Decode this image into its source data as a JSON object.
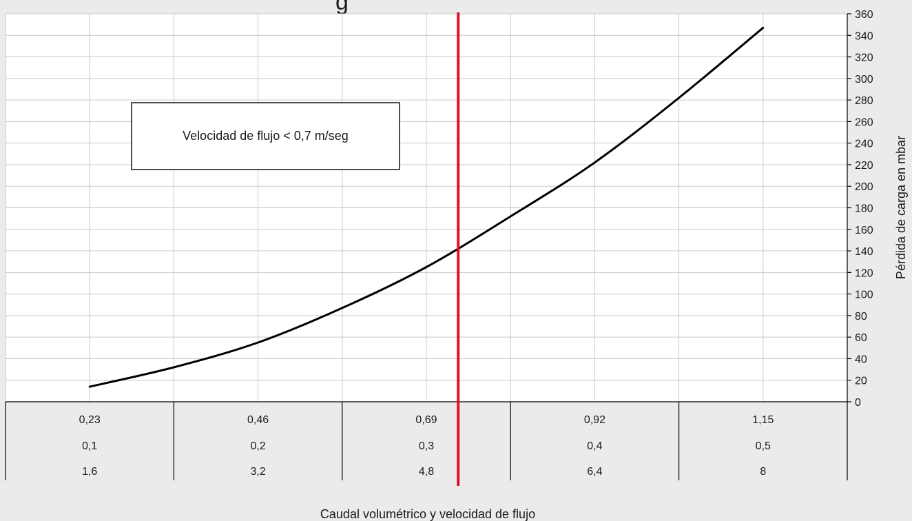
{
  "colors": {
    "background": "#ebebeb",
    "plot_background": "#ffffff",
    "grid": "#c8c8c8",
    "curve": "#000000",
    "marker_line": "#e0102a"
  },
  "chart_data": {
    "type": "line",
    "title": "",
    "xlabel": "Caudal volumétrico y velocidad de flujo",
    "ylabel": "Pérdida de carga en mbar",
    "ylim": [
      0,
      360
    ],
    "y_ticks": [
      0,
      20,
      40,
      60,
      80,
      100,
      120,
      140,
      160,
      180,
      200,
      220,
      240,
      260,
      280,
      300,
      320,
      340,
      360
    ],
    "y_axis_position": "right",
    "grid": true,
    "x_table_rows": [
      [
        "0,23",
        "0,46",
        "0,69",
        "0,92",
        "1,15"
      ],
      [
        "0,1",
        "0,2",
        "0,3",
        "0,4",
        "0,5"
      ],
      [
        "1,6",
        "3,2",
        "4,8",
        "6,4",
        "8"
      ]
    ],
    "series": [
      {
        "x": [
          0.23,
          0.345,
          0.46,
          0.575,
          0.69,
          0.805,
          0.92,
          1.035,
          1.15
        ],
        "y": [
          14,
          32,
          55,
          87,
          125,
          172,
          222,
          282,
          347
        ]
      }
    ],
    "vertical_line": {
      "x": 0.7335
    },
    "annotation": "Velocidad de flujo < 0,7 m/seg"
  }
}
